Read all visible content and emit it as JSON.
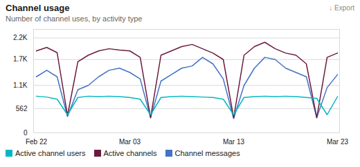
{
  "chart_data": {
    "type": "line",
    "title": "Channel usage",
    "subtitle": "Number of channel uses, by activity type",
    "annotations": [
      "↓ Export"
    ],
    "categories": [
      "Feb 22",
      null,
      null,
      null,
      null,
      null,
      null,
      null,
      null,
      "Mar 03",
      null,
      null,
      null,
      null,
      null,
      null,
      null,
      null,
      null,
      "Mar 13",
      null,
      null,
      null,
      null,
      null,
      null,
      null,
      null,
      null,
      "Mar 23"
    ],
    "series": [
      {
        "name": "Active channel users",
        "color": "#00b7c3",
        "values": [
          850,
          830,
          780,
          420,
          820,
          850,
          840,
          850,
          840,
          820,
          780,
          420,
          820,
          840,
          850,
          840,
          830,
          820,
          780,
          420,
          820,
          840,
          850,
          840,
          850,
          840,
          820,
          800,
          420,
          840
        ]
      },
      {
        "name": "Active channels",
        "color": "#6b1a3f",
        "values": [
          1900,
          1980,
          1860,
          400,
          1650,
          1800,
          1900,
          1950,
          1920,
          1900,
          1750,
          350,
          1800,
          1900,
          2000,
          2050,
          1950,
          1850,
          1700,
          350,
          1800,
          2000,
          2100,
          1950,
          1850,
          1800,
          1600,
          350,
          1750,
          1850
        ]
      },
      {
        "name": "Channel messages",
        "color": "#4472c4",
        "values": [
          1300,
          1450,
          1300,
          380,
          1000,
          1100,
          1300,
          1450,
          1500,
          1400,
          1250,
          350,
          1200,
          1350,
          1500,
          1550,
          1750,
          1600,
          1250,
          330,
          1100,
          1500,
          1750,
          1700,
          1500,
          1400,
          1300,
          350,
          1050,
          1350
        ]
      }
    ],
    "ylim": [
      0,
      2400
    ],
    "yticks": [
      0,
      562,
      {
        "value": 1100,
        "label": "1.1K"
      },
      {
        "value": 1700,
        "label": "1.7K"
      },
      {
        "value": 2200,
        "label": "2.2K"
      }
    ],
    "grid": true,
    "legend": "bottom"
  }
}
